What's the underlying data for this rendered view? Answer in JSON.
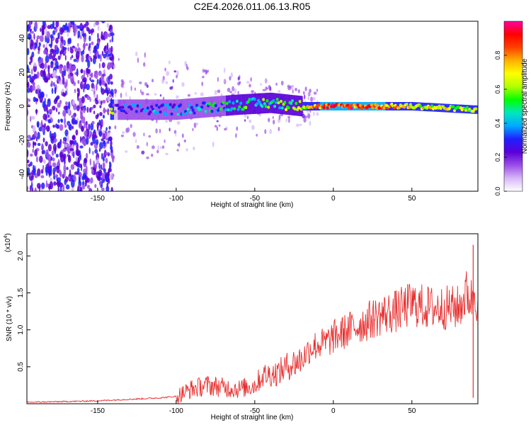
{
  "title": "C2E4.2026.011.06.13.R05",
  "chart_data": [
    {
      "type": "heatmap",
      "xlabel": "Height of straight line (km)",
      "ylabel": "Frequency (Hz)",
      "xlim": [
        -195,
        92
      ],
      "ylim": [
        -50,
        50
      ],
      "xticks": [
        -150,
        -100,
        -50,
        0,
        50
      ],
      "yticks": [
        -40,
        -20,
        0,
        20,
        40
      ],
      "colorbar": {
        "label": "Normalized spectral amplitude",
        "range": [
          0.0,
          1.0
        ],
        "ticks": [
          "0.0",
          "0.2",
          "0.4",
          "0.6",
          "0.8"
        ],
        "colors": [
          "#ffffff",
          "#d6b7f7",
          "#9a4ee8",
          "#5a00d8",
          "#2020ff",
          "#00aaff",
          "#00e6c0",
          "#00ff00",
          "#b0ff00",
          "#ffff00",
          "#ffb000",
          "#ff4000",
          "#ff0000",
          "#ff00a0"
        ]
      },
      "signal_track": [
        {
          "height": -140,
          "freq": -2,
          "amplitude": 0.25
        },
        {
          "height": -100,
          "freq": -2,
          "amplitude": 0.35
        },
        {
          "height": -60,
          "freq": 1,
          "amplitude": 0.45
        },
        {
          "height": -40,
          "freq": 2,
          "amplitude": 0.5
        },
        {
          "height": -20,
          "freq": 0,
          "amplitude": 0.6
        },
        {
          "height": 0,
          "freq": 0,
          "amplitude": 0.9
        },
        {
          "height": 50,
          "freq": 0,
          "amplitude": 0.7
        },
        {
          "height": 90,
          "freq": -2,
          "amplitude": 0.6
        }
      ]
    },
    {
      "type": "line",
      "xlabel": "Height of straight line (km)",
      "ylabel": "SNR (10 * v/v)",
      "scale_label": "(x10",
      "scale_exp": "4",
      "xlim": [
        -195,
        92
      ],
      "ylim": [
        0,
        2.3
      ],
      "xticks": [
        -150,
        -100,
        -50,
        0,
        50
      ],
      "yticks": [
        "0.5",
        "1.0",
        "1.5",
        "2.0"
      ],
      "color": "#e83030",
      "x": [
        -195,
        -170,
        -150,
        -140,
        -130,
        -120,
        -110,
        -100,
        -90,
        -80,
        -70,
        -60,
        -50,
        -45,
        -40,
        -35,
        -30,
        -25,
        -20,
        -15,
        -10,
        -5,
        0,
        10,
        20,
        30,
        40,
        50,
        60,
        70,
        80,
        85,
        88,
        90,
        92
      ],
      "y": [
        0.02,
        0.03,
        0.04,
        0.05,
        0.06,
        0.07,
        0.08,
        0.1,
        0.2,
        0.25,
        0.22,
        0.2,
        0.25,
        0.38,
        0.4,
        0.42,
        0.5,
        0.55,
        0.6,
        0.75,
        0.8,
        0.82,
        0.9,
        1.0,
        1.1,
        1.2,
        1.25,
        1.35,
        1.3,
        1.3,
        1.3,
        1.5,
        1.4,
        1.6,
        1.3
      ]
    }
  ]
}
